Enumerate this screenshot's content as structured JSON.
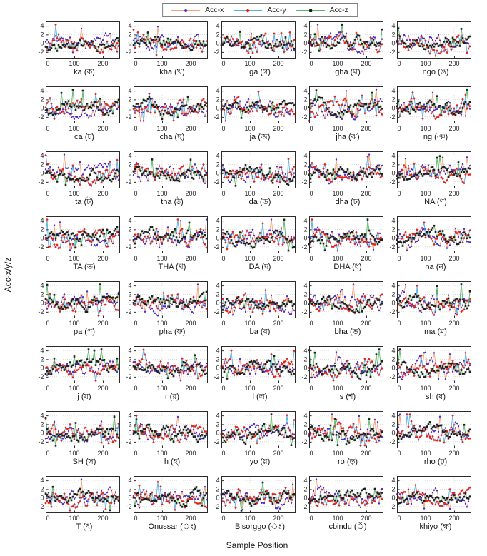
{
  "figure": {
    "xlabel": "Sample Position",
    "ylabel": "Acc-x/y/z"
  },
  "chart_data": {
    "type": "line",
    "grid_layout": {
      "rows": 8,
      "cols": 5
    },
    "xlabel": "Sample Position",
    "ylabel": "Acc-x/y/z",
    "xlim": [
      0,
      260
    ],
    "xticks": [
      0,
      100,
      200
    ],
    "ylim": [
      -3.5,
      5
    ],
    "yticks": [
      -2,
      0,
      2,
      4
    ],
    "grid": true,
    "legend_position": "top-center",
    "axis_color": "#2b2b2b",
    "grid_color": "#c9c9c9",
    "series": [
      {
        "name": "Acc-x",
        "line_color": "#f5a176",
        "marker": "circle",
        "marker_color": "#4533cc"
      },
      {
        "name": "Acc-y",
        "line_color": "#57aee0",
        "marker": "diamond",
        "marker_color": "#e52218"
      },
      {
        "name": "Acc-z",
        "line_color": "#58b868",
        "marker": "square",
        "marker_color": "#1f1f1f"
      }
    ],
    "samples_per_trace": 52,
    "sample_step": 5,
    "data_note": "Each of the 40 subplots shows three dense noisy accelerometer traces over sample positions 0-255, fluctuating mostly between -2 and 3 with occasional spikes to about 4 and -3; exact sample values are not legible at this scale and are regenerated pseudo-randomly from each subplot's seed.",
    "subplots": [
      {
        "label": "ka (ক)",
        "seed": 1
      },
      {
        "label": "kha (খ)",
        "seed": 2
      },
      {
        "label": "ga (গ)",
        "seed": 3
      },
      {
        "label": "gha (ঘ)",
        "seed": 4
      },
      {
        "label": "ngo (ঙ)",
        "seed": 5
      },
      {
        "label": "ca (চ)",
        "seed": 6
      },
      {
        "label": "cha (ছ)",
        "seed": 7
      },
      {
        "label": "ja (জ)",
        "seed": 8
      },
      {
        "label": "jha (ঝ)",
        "seed": 9
      },
      {
        "label": "ng (ঞ)",
        "seed": 10
      },
      {
        "label": "ta (ট)",
        "seed": 11
      },
      {
        "label": "tha (ঠ)",
        "seed": 12
      },
      {
        "label": "da (ড)",
        "seed": 13
      },
      {
        "label": "dha (ঢ)",
        "seed": 14
      },
      {
        "label": "NA (ণ)",
        "seed": 15
      },
      {
        "label": "TA (ত)",
        "seed": 16
      },
      {
        "label": "THA (থ)",
        "seed": 17
      },
      {
        "label": "DA (দ)",
        "seed": 18
      },
      {
        "label": "DHA (ধ)",
        "seed": 19
      },
      {
        "label": "na (ন)",
        "seed": 20
      },
      {
        "label": "pa (প)",
        "seed": 21
      },
      {
        "label": "pha (ফ)",
        "seed": 22
      },
      {
        "label": "ba (ব)",
        "seed": 23
      },
      {
        "label": "bha (ভ)",
        "seed": 24
      },
      {
        "label": "ma (ম)",
        "seed": 25
      },
      {
        "label": "j (য)",
        "seed": 26
      },
      {
        "label": "r (র)",
        "seed": 27
      },
      {
        "label": "l (ল)",
        "seed": 28
      },
      {
        "label": "s (শ)",
        "seed": 29
      },
      {
        "label": "sh (ষ)",
        "seed": 30
      },
      {
        "label": "SH (স)",
        "seed": 31
      },
      {
        "label": "h (হ)",
        "seed": 32
      },
      {
        "label": "yo (য়)",
        "seed": 33
      },
      {
        "label": "ro (ড়)",
        "seed": 34
      },
      {
        "label": "rho (ঢ়)",
        "seed": 35
      },
      {
        "label": "T (ৎ)",
        "seed": 36
      },
      {
        "label": "Onussar (ং)",
        "seed": 37
      },
      {
        "label": "Bisorggo (ঃ)",
        "seed": 38
      },
      {
        "label": "cbindu (ঁ)",
        "seed": 39
      },
      {
        "label": "khiyo (ক্ষ)",
        "seed": 40
      }
    ]
  }
}
